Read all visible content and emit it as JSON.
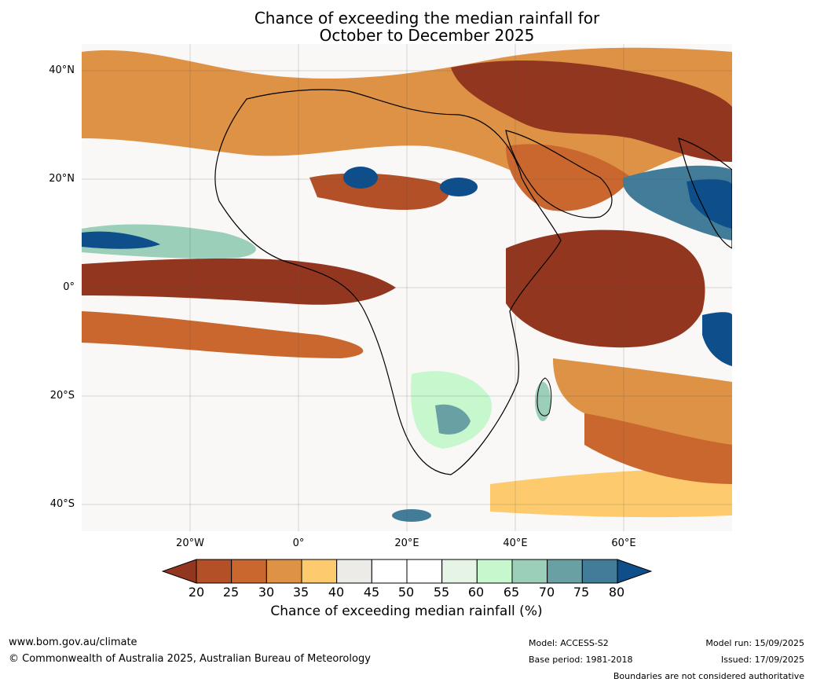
{
  "title": {
    "line1": "Chance of exceeding the median rainfall for",
    "line2": "October to December 2025"
  },
  "map": {
    "lat_labels": [
      "40°N",
      "20°N",
      "0°",
      "20°S",
      "40°S"
    ],
    "lon_labels": [
      "20°W",
      "0°",
      "20°E",
      "40°E",
      "60°E"
    ],
    "projection": "equirectangular",
    "extent_lon": [
      -40,
      80
    ],
    "extent_lat": [
      -45,
      45
    ],
    "grid_lines": true
  },
  "legend": {
    "tick_labels": [
      "20",
      "25",
      "30",
      "35",
      "40",
      "45",
      "50",
      "55",
      "60",
      "65",
      "70",
      "75",
      "80"
    ],
    "colors": [
      "#b35027",
      "#c9672f",
      "#de9246",
      "#fdcb6e",
      "#ecebe7",
      "#ffffff",
      "#ffffff",
      "#e6f4e6",
      "#c6f7cd",
      "#9bcfb9",
      "#69a0a4",
      "#427c98"
    ],
    "under_color": "#933620",
    "over_color": "#0d4e8b",
    "title": "Chance of exceeding median rainfall (%)"
  },
  "footer": {
    "website": "www.bom.gov.au/climate",
    "copyright": "© Commonwealth of Australia 2025, Australian Bureau of Meteorology",
    "model": "Model: ACCESS-S2",
    "base_period": "Base period: 1981-2018",
    "model_run": "Model run: 15/09/2025",
    "issued": "Issued: 17/09/2025",
    "disclaimer": "Boundaries are not considered authoritative"
  }
}
